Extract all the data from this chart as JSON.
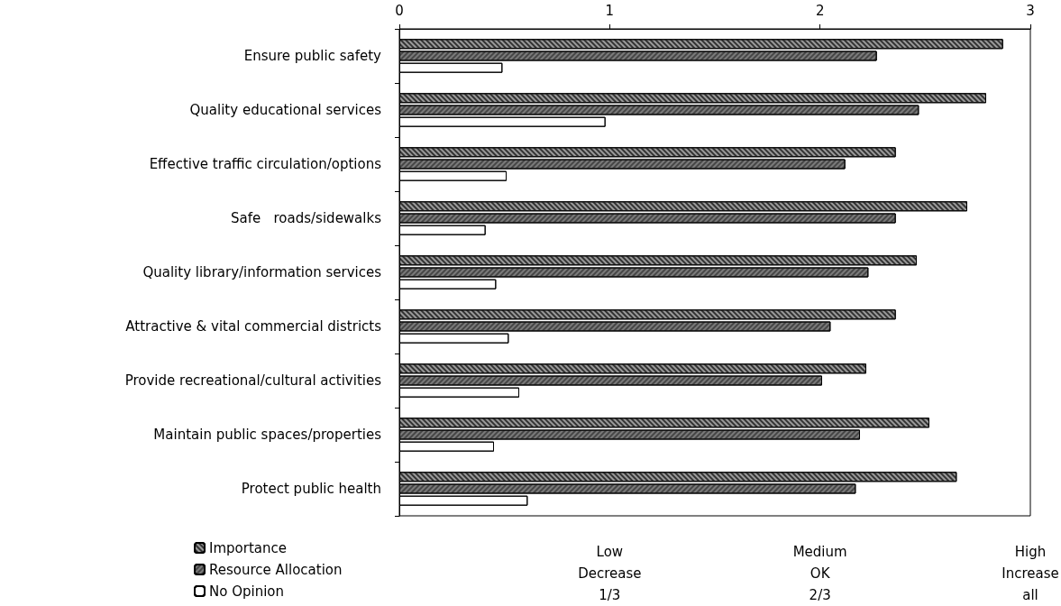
{
  "chart_data": {
    "type": "bar",
    "orientation": "horizontal",
    "categories": [
      "Ensure public safety",
      "Quality educational services",
      "Effective traffic circulation/options",
      "Safe   roads/sidewalks",
      "Quality library/information services",
      "Attractive & vital commercial districts",
      "Provide recreational/cultural activities",
      "Maintain public spaces/properties",
      "Protect public health"
    ],
    "series": [
      {
        "name": "Importance",
        "color": "#9a9a9a",
        "values": [
          2.87,
          2.79,
          2.36,
          2.7,
          2.46,
          2.36,
          2.22,
          2.52,
          2.65
        ]
      },
      {
        "name": "Resource Allocation",
        "color": "#7a7a7a",
        "values": [
          2.27,
          2.47,
          2.12,
          2.36,
          2.23,
          2.05,
          2.01,
          2.19,
          2.17
        ]
      },
      {
        "name": "No Opinion",
        "color": "#ffffff",
        "values": [
          0.49,
          0.98,
          0.51,
          0.41,
          0.46,
          0.52,
          0.57,
          0.45,
          0.61
        ]
      }
    ],
    "xlim": [
      0,
      3
    ],
    "xticks": [
      0,
      1,
      2,
      3
    ],
    "annotations": [
      "Low\nDecrease\n1/3",
      "Medium\nOK\n2/3",
      "High\nIncrease\nall"
    ],
    "grid": false,
    "legend": "bottom left"
  }
}
